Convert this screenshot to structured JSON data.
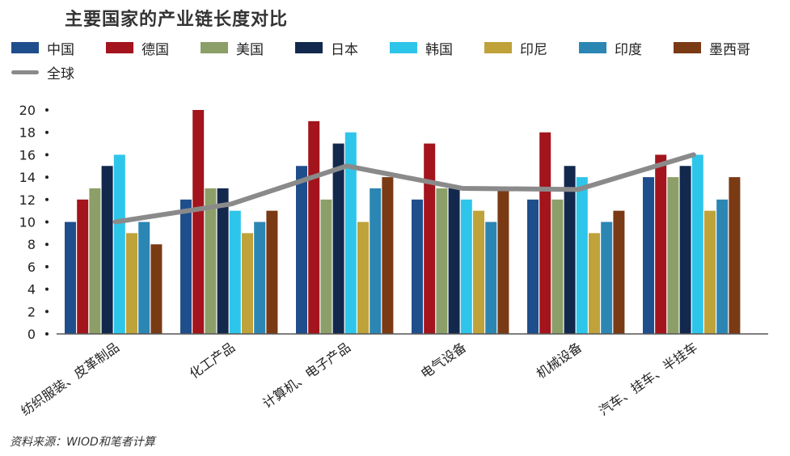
{
  "title": "主要国家的产业链长度对比",
  "source": "资料来源：WIOD和笔者计算",
  "chart_data": {
    "type": "bar",
    "title": "主要国家的产业链长度对比",
    "xlabel": "",
    "ylabel": "",
    "ylim": [
      0,
      20
    ],
    "yticks": [
      "0",
      "2",
      "4",
      "6",
      "8",
      "10",
      "12",
      "14",
      "16",
      "18",
      "20"
    ],
    "categories": [
      "纺织服装、皮革制品",
      "化工产品",
      "计算机、电子产品",
      "电气设备",
      "机械设备",
      "汽车、挂车、半挂车"
    ],
    "series": [
      {
        "name": "中国",
        "color": "#1f4e8c",
        "values": [
          10,
          12,
          15,
          12,
          12,
          14
        ]
      },
      {
        "name": "德国",
        "color": "#a3141c",
        "values": [
          12,
          20,
          19,
          17,
          18,
          16
        ]
      },
      {
        "name": "美国",
        "color": "#8c9f68",
        "values": [
          13,
          13,
          12,
          13,
          12,
          14
        ]
      },
      {
        "name": "日本",
        "color": "#13284d",
        "values": [
          15,
          13,
          17,
          13,
          15,
          15
        ]
      },
      {
        "name": "韩国",
        "color": "#2ec5ea",
        "values": [
          16,
          11,
          18,
          12,
          14,
          16
        ]
      },
      {
        "name": "印尼",
        "color": "#bfa23a",
        "values": [
          9,
          9,
          10,
          11,
          9,
          11
        ]
      },
      {
        "name": "印度",
        "color": "#2c86b4",
        "values": [
          10,
          10,
          13,
          10,
          10,
          12
        ]
      },
      {
        "name": "墨西哥",
        "color": "#7a3a14",
        "values": [
          8,
          11,
          14,
          13,
          11,
          14
        ]
      }
    ],
    "line_series": {
      "name": "全球",
      "color": "#8a8a8a",
      "values": [
        10,
        11.6,
        15,
        13,
        12.9,
        16
      ]
    }
  }
}
